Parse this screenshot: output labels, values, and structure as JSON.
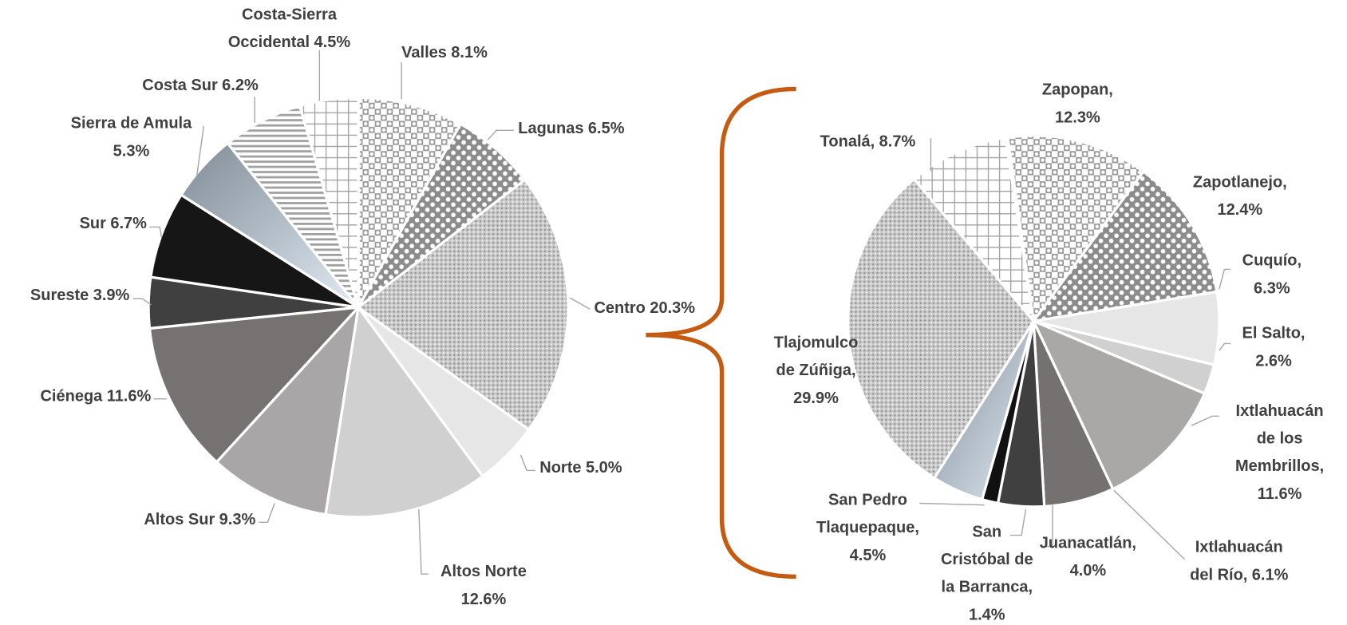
{
  "chart_data": [
    {
      "type": "pie",
      "categories": [
        "Valles",
        "Lagunas",
        "Centro",
        "Norte",
        "Altos Norte",
        "Altos Sur",
        "Ciénega",
        "Sureste",
        "Sur",
        "Sierra de Amula",
        "Costa Sur",
        "Costa-Sierra Occidental"
      ],
      "values": [
        8.1,
        6.5,
        20.3,
        5.0,
        12.6,
        9.3,
        11.6,
        3.9,
        6.7,
        5.3,
        6.2,
        4.5
      ],
      "value_labels": [
        "8.1%",
        "6.5%",
        "20.3%",
        "5.0%",
        "12.6%",
        "9.3%",
        "11.6%",
        "3.9%",
        "6.7%",
        "5.3%",
        "6.2%",
        "4.5%"
      ],
      "colors": [
        "#a6a6a6",
        "#a6a6a6",
        "#b0b0b0",
        "#e6e6e6",
        "#d0d0d0",
        "#a8a6a6",
        "#767271",
        "#404040",
        "#161616",
        "#a9b6c4",
        "#a0a0a0",
        "#a0a0a0"
      ]
    },
    {
      "type": "pie",
      "categories": [
        "Zapopan,",
        "Zapotlanejo,",
        "Cuquío,",
        "El Salto,",
        "Ixtlahuacán de los Membrillos,",
        "Ixtlahuacán del Río,",
        "Juanacatlán,",
        "San Cristóbal de la Barranca,",
        "San Pedro Tlaquepaque,",
        "Tlajomulco de Zúñiga,",
        "Tonalá,"
      ],
      "values": [
        12.3,
        12.4,
        6.3,
        2.6,
        11.6,
        6.1,
        4.0,
        1.4,
        4.5,
        29.9,
        8.7
      ],
      "value_labels": [
        "12.3%",
        "12.4%",
        "6.3%",
        "2.6%",
        "11.6%",
        "6.1%",
        "4.0%",
        "1.4%",
        "4.5%",
        "29.9%",
        "8.7%"
      ],
      "colors": [
        "#a6a6a6",
        "#a6a6a6",
        "#e6e6e6",
        "#d0d0d0",
        "#aaa8a7",
        "#747170",
        "#404040",
        "#111111",
        "#a9b6c4",
        "#b0b0b0",
        "#a0a0a0"
      ]
    }
  ]
}
